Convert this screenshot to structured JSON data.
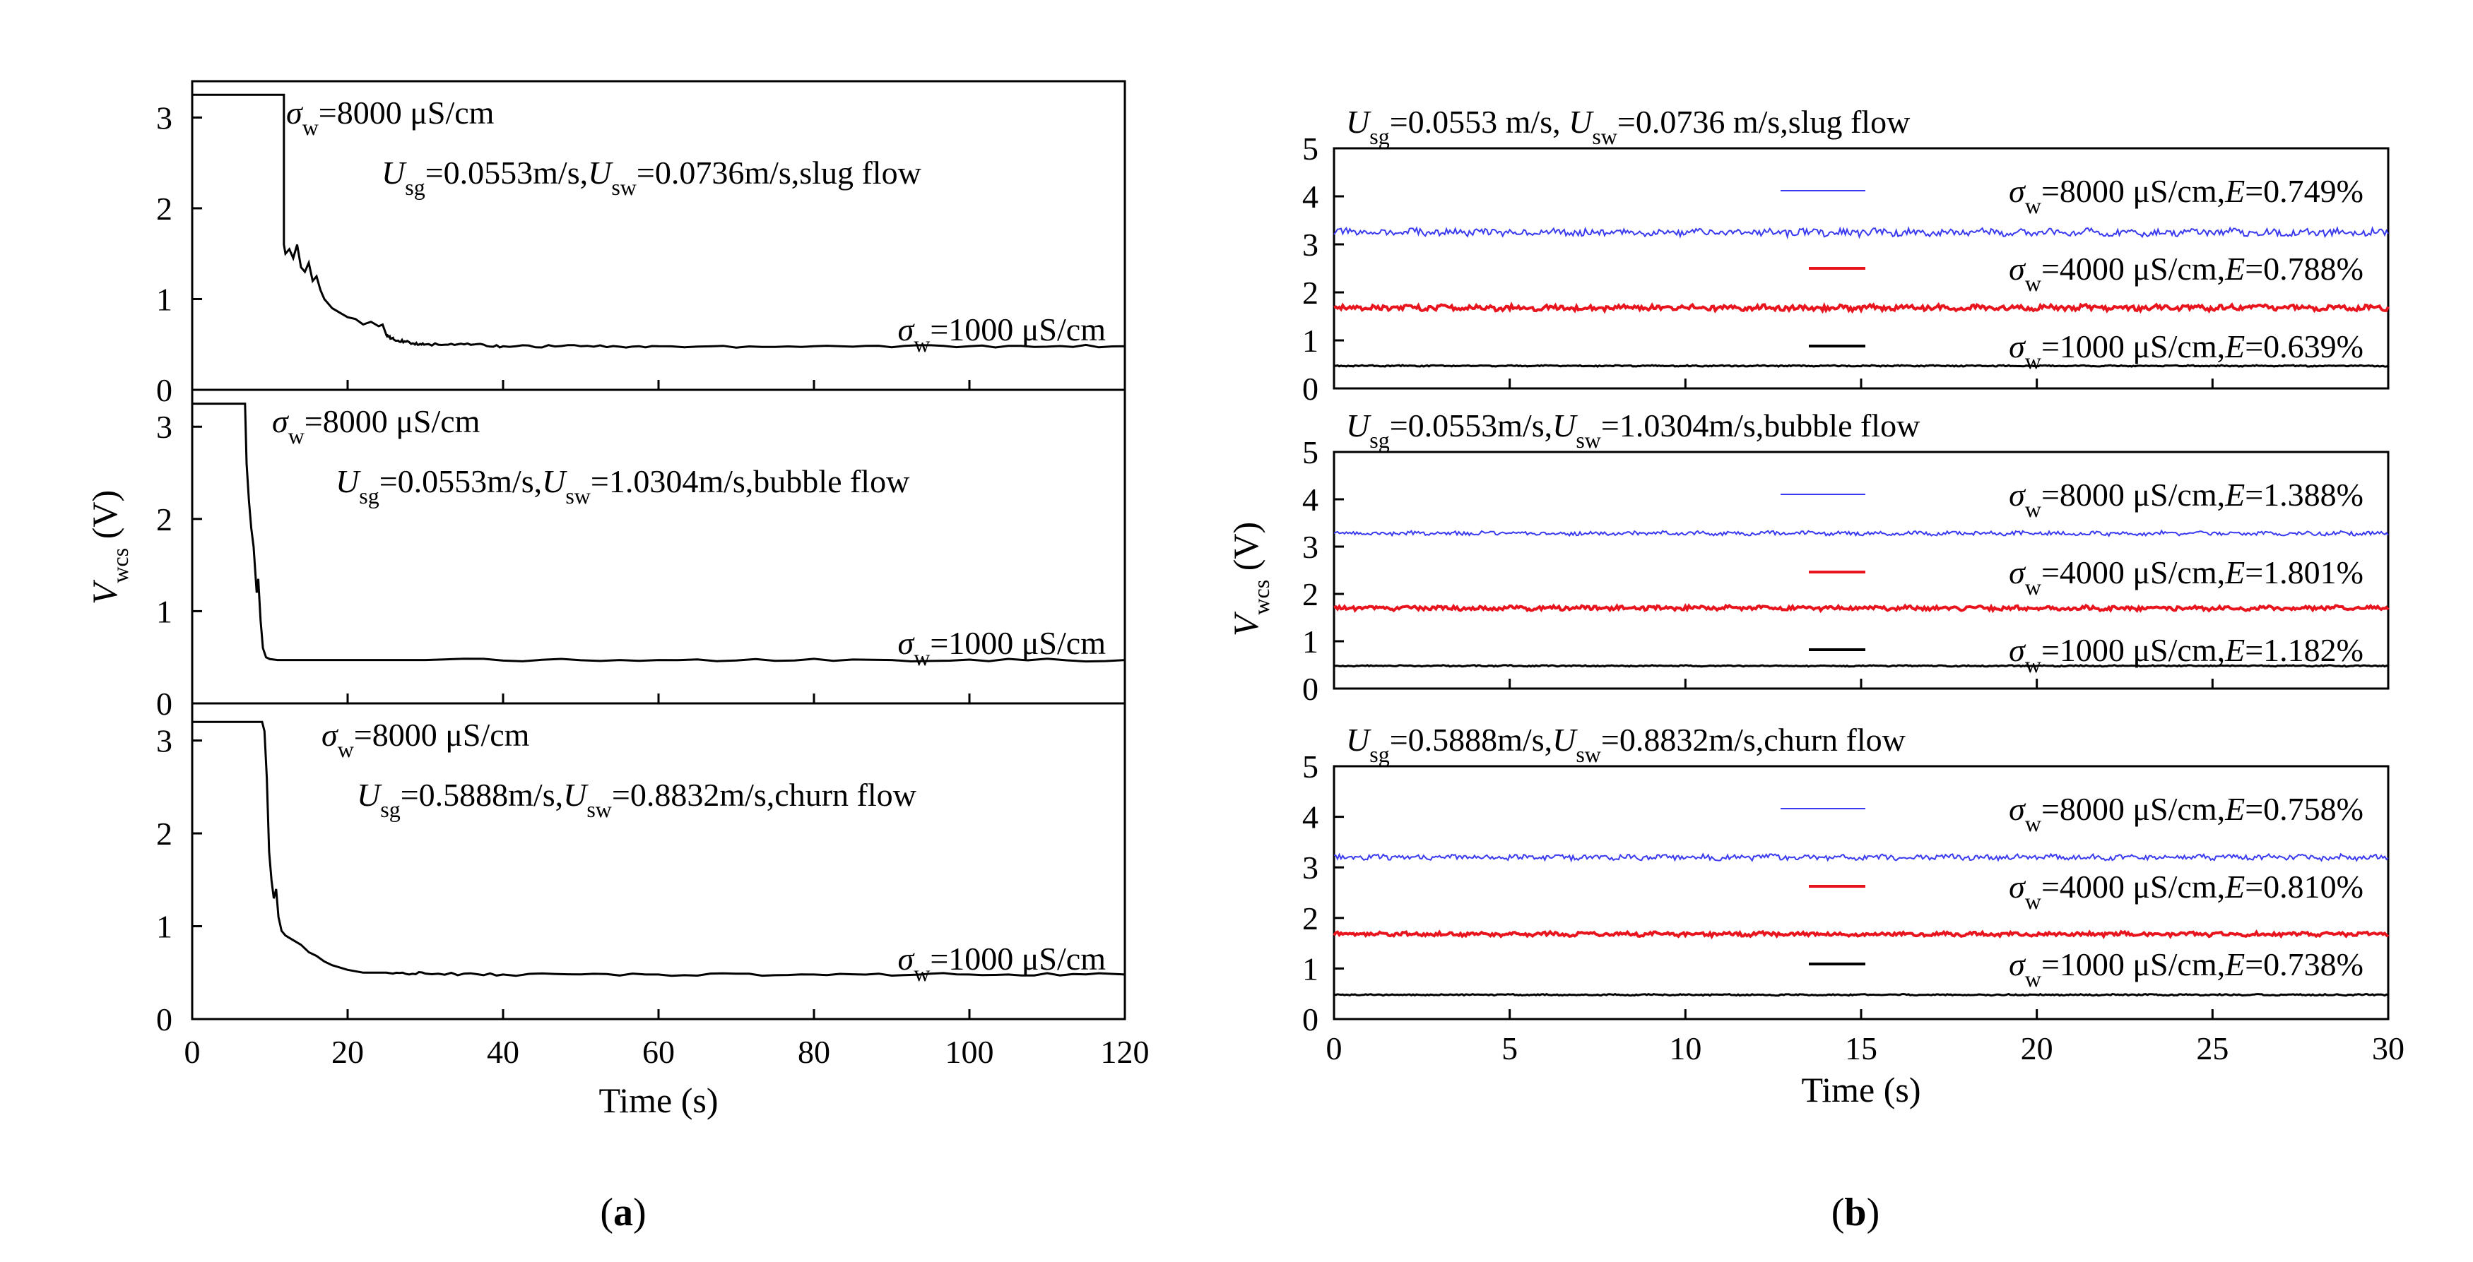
{
  "chart_data": [
    {
      "panel": "a",
      "type": "line",
      "panel_label": "a",
      "xlabel": "Time (s)",
      "ylabel_main": "V",
      "ylabel_sub": "wcs",
      "ylabel_unit": " (V)",
      "xlim": [
        0,
        120
      ],
      "xticks": [
        "0",
        "20",
        "40",
        "60",
        "80",
        "100",
        "120"
      ],
      "subplots": [
        {
          "name": "slug",
          "ylim": [
            0,
            3.4
          ],
          "yticks": [
            "0",
            "1",
            "2",
            "3"
          ],
          "ann_sigma_high": "=8000 μS/cm",
          "ann_flow": {
            "u1": "U",
            "s1": "sg",
            "v1": "=0.0553m/s,",
            "u2": "U",
            "s2": "sw",
            "v2": "=0.0736m/s,slug flow"
          },
          "ann_sigma_low": "=1000 μS/cm",
          "series": [
            {
              "name": "V_wcs",
              "x": [
                0,
                11.8,
                11.8,
                12.0,
                12.5,
                13.0,
                13.5,
                14.0,
                14.5,
                15.0,
                15.5,
                16.0,
                16.5,
                17.0,
                17.5,
                18.0,
                19.0,
                20.0,
                21.0,
                22.0,
                23.0,
                24.0,
                24.5,
                25.0,
                26.0,
                28.0,
                30.0,
                35.0,
                40.0,
                50.0,
                60.0,
                80.0,
                100.0,
                120.0
              ],
              "y": [
                3.25,
                3.25,
                1.6,
                1.5,
                1.55,
                1.45,
                1.6,
                1.35,
                1.3,
                1.4,
                1.2,
                1.25,
                1.1,
                1.0,
                0.95,
                0.9,
                0.85,
                0.8,
                0.78,
                0.72,
                0.75,
                0.7,
                0.72,
                0.6,
                0.55,
                0.52,
                0.5,
                0.5,
                0.48,
                0.48,
                0.48,
                0.48,
                0.48,
                0.48
              ]
            }
          ]
        },
        {
          "name": "bubble",
          "ylim": [
            0,
            3.4
          ],
          "yticks": [
            "0",
            "1",
            "2",
            "3"
          ],
          "ann_sigma_high": "=8000 μS/cm",
          "ann_flow": {
            "u1": "U",
            "s1": "sg",
            "v1": "=0.0553m/s,",
            "u2": "U",
            "s2": "sw",
            "v2": "=1.0304m/s,bubble flow"
          },
          "ann_sigma_low": "=1000 μS/cm",
          "series": [
            {
              "name": "V_wcs",
              "x": [
                0,
                6.8,
                7.0,
                7.3,
                7.6,
                7.9,
                8.1,
                8.3,
                8.5,
                8.8,
                9.1,
                9.5,
                10.0,
                11.0,
                15.0,
                30.0,
                60.0,
                90.0,
                120.0
              ],
              "y": [
                3.25,
                3.25,
                2.6,
                2.2,
                1.9,
                1.7,
                1.45,
                1.2,
                1.35,
                0.9,
                0.6,
                0.5,
                0.48,
                0.47,
                0.47,
                0.47,
                0.47,
                0.47,
                0.47
              ]
            }
          ]
        },
        {
          "name": "churn",
          "ylim": [
            0,
            3.4
          ],
          "yticks": [
            "0",
            "1",
            "2",
            "3"
          ],
          "ann_sigma_high": "=8000 μS/cm",
          "ann_flow": {
            "u1": "U",
            "s1": "sg",
            "v1": "=0.5888m/s,",
            "u2": "U",
            "s2": "sw",
            "v2": "=0.8832m/s,churn flow"
          },
          "ann_sigma_low": "=1000 μS/cm",
          "series": [
            {
              "name": "V_wcs",
              "x": [
                0,
                9.0,
                9.3,
                9.6,
                9.9,
                10.2,
                10.5,
                10.8,
                11.1,
                11.5,
                12.0,
                13.0,
                14.0,
                15.0,
                16.0,
                17.0,
                18.0,
                20.0,
                22.0,
                25.0,
                30.0,
                40.0,
                60.0,
                80.0,
                100.0,
                120.0
              ],
              "y": [
                3.2,
                3.2,
                3.1,
                2.6,
                1.8,
                1.5,
                1.3,
                1.4,
                1.1,
                0.95,
                0.9,
                0.85,
                0.8,
                0.72,
                0.68,
                0.62,
                0.58,
                0.53,
                0.5,
                0.5,
                0.49,
                0.48,
                0.48,
                0.48,
                0.48,
                0.48
              ]
            }
          ]
        }
      ]
    },
    {
      "panel": "b",
      "type": "line",
      "panel_label": "b",
      "xlabel": "Time (s)",
      "ylabel_main": "V",
      "ylabel_sub": "wcs",
      "ylabel_unit": " (V)",
      "xlim": [
        0,
        30
      ],
      "xticks": [
        "0",
        "5",
        "10",
        "15",
        "20",
        "25",
        "30"
      ],
      "subplots": [
        {
          "name": "slug",
          "ylim": [
            0,
            5
          ],
          "yticks": [
            "0",
            "1",
            "2",
            "3",
            "4",
            "5"
          ],
          "title": {
            "u1": "U",
            "s1": "sg",
            "v1": "=0.0553 m/s, ",
            "u2": "U",
            "s2": "sw",
            "v2": "=0.0736 m/s,slug flow"
          },
          "series": [
            {
              "name": "σw=8000",
              "color": "#3a3af0",
              "level": 3.25,
              "amp": 0.07,
              "sigma": "=8000 μS/cm,",
              "E": "=0.749%"
            },
            {
              "name": "σw=4000",
              "color": "#e8141e",
              "level": 1.68,
              "amp": 0.05,
              "sigma": "=4000 μS/cm,",
              "E": "=0.788%"
            },
            {
              "name": "σw=1000",
              "color": "#000000",
              "level": 0.47,
              "amp": 0.012,
              "sigma": "=1000 μS/cm,",
              "E": "=0.639%"
            }
          ]
        },
        {
          "name": "bubble",
          "ylim": [
            0,
            5
          ],
          "yticks": [
            "0",
            "1",
            "2",
            "3",
            "4",
            "5"
          ],
          "title": {
            "u1": "U",
            "s1": "sg",
            "v1": "=0.0553m/s,",
            "u2": "U",
            "s2": "sw",
            "v2": "=1.0304m/s,bubble flow"
          },
          "series": [
            {
              "name": "σw=8000",
              "color": "#3a3af0",
              "level": 3.28,
              "amp": 0.04,
              "sigma": "=8000 μS/cm,",
              "E": "=1.388%"
            },
            {
              "name": "σw=4000",
              "color": "#e8141e",
              "level": 1.7,
              "amp": 0.04,
              "sigma": "=4000 μS/cm,",
              "E": "=1.801%"
            },
            {
              "name": "σw=1000",
              "color": "#000000",
              "level": 0.48,
              "amp": 0.012,
              "sigma": "=1000 μS/cm,",
              "E": "=1.182%"
            }
          ]
        },
        {
          "name": "churn",
          "ylim": [
            0,
            5
          ],
          "yticks": [
            "0",
            "1",
            "2",
            "3",
            "4",
            "5"
          ],
          "title": {
            "u1": "U",
            "s1": "sg",
            "v1": "=0.5888m/s,",
            "u2": "U",
            "s2": "sw",
            "v2": "=0.8832m/s,churn flow"
          },
          "series": [
            {
              "name": "σw=8000",
              "color": "#3a3af0",
              "level": 3.2,
              "amp": 0.05,
              "sigma": "=8000 μS/cm,",
              "E": "=0.758%"
            },
            {
              "name": "σw=4000",
              "color": "#e8141e",
              "level": 1.68,
              "amp": 0.035,
              "sigma": "=4000 μS/cm,",
              "E": "=0.810%"
            },
            {
              "name": "σw=1000",
              "color": "#000000",
              "level": 0.48,
              "amp": 0.012,
              "sigma": "=1000 μS/cm,",
              "E": "=0.738%"
            }
          ]
        }
      ]
    }
  ]
}
